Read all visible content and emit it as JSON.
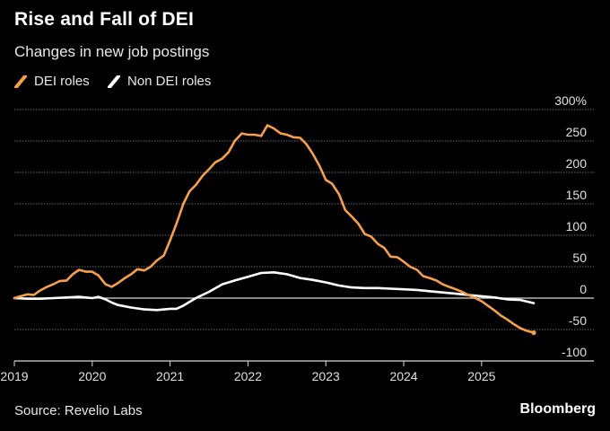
{
  "header": {
    "title": "Rise and Fall of DEI",
    "subtitle": "Changes in new job postings"
  },
  "legend": {
    "items": [
      {
        "label": "DEI roles",
        "color": "#f6a04d",
        "icon": "slash-line-icon"
      },
      {
        "label": "Non DEI roles",
        "color": "#ffffff",
        "icon": "slash-line-icon"
      }
    ]
  },
  "footer": {
    "source": "Source: Revelio Labs",
    "brand": "Bloomberg"
  },
  "chart_data": {
    "type": "line",
    "xlim": [
      2019.0,
      2026.05
    ],
    "ylim": [
      -100,
      300
    ],
    "x_ticks": [
      {
        "value": 2019,
        "label": "2019"
      },
      {
        "value": 2020,
        "label": "2020"
      },
      {
        "value": 2021,
        "label": "2021"
      },
      {
        "value": 2022,
        "label": "2022"
      },
      {
        "value": 2023,
        "label": "2023"
      },
      {
        "value": 2024,
        "label": "2024"
      },
      {
        "value": 2025,
        "label": "2025"
      }
    ],
    "y_ticks": [
      {
        "value": 300,
        "label": "300%"
      },
      {
        "value": 250,
        "label": "250"
      },
      {
        "value": 200,
        "label": "200"
      },
      {
        "value": 150,
        "label": "150"
      },
      {
        "value": 100,
        "label": "100"
      },
      {
        "value": 50,
        "label": "50"
      },
      {
        "value": 0,
        "label": "0"
      },
      {
        "value": -50,
        "label": "-50"
      },
      {
        "value": -100,
        "label": "-100"
      }
    ],
    "grid": true,
    "series": [
      {
        "name": "DEI roles",
        "color": "#f6a04d",
        "x": [
          2019.0,
          2019.08,
          2019.17,
          2019.25,
          2019.33,
          2019.42,
          2019.5,
          2019.58,
          2019.67,
          2019.75,
          2019.83,
          2019.92,
          2020.0,
          2020.08,
          2020.17,
          2020.25,
          2020.33,
          2020.42,
          2020.5,
          2020.58,
          2020.67,
          2020.75,
          2020.83,
          2020.92,
          2021.0,
          2021.08,
          2021.17,
          2021.25,
          2021.33,
          2021.42,
          2021.5,
          2021.58,
          2021.67,
          2021.75,
          2021.83,
          2021.92,
          2022.0,
          2022.08,
          2022.17,
          2022.25,
          2022.33,
          2022.42,
          2022.5,
          2022.58,
          2022.67,
          2022.75,
          2022.83,
          2022.92,
          2023.0,
          2023.08,
          2023.17,
          2023.25,
          2023.33,
          2023.42,
          2023.5,
          2023.58,
          2023.67,
          2023.75,
          2023.83,
          2023.92,
          2024.0,
          2024.08,
          2024.17,
          2024.25,
          2024.33,
          2024.42,
          2024.5,
          2024.58,
          2024.67,
          2024.75,
          2024.83,
          2024.92,
          2025.0,
          2025.08,
          2025.17,
          2025.25,
          2025.33,
          2025.42,
          2025.5,
          2025.58,
          2025.67
        ],
        "values": [
          0,
          3,
          6,
          5,
          12,
          18,
          22,
          27,
          28,
          38,
          45,
          42,
          42,
          36,
          22,
          18,
          24,
          32,
          38,
          46,
          44,
          50,
          60,
          68,
          92,
          118,
          150,
          170,
          180,
          195,
          205,
          216,
          222,
          232,
          250,
          262,
          260,
          260,
          258,
          275,
          270,
          262,
          260,
          256,
          255,
          245,
          230,
          210,
          188,
          182,
          165,
          140,
          130,
          118,
          102,
          98,
          86,
          80,
          66,
          65,
          58,
          50,
          45,
          35,
          32,
          28,
          22,
          18,
          14,
          10,
          5,
          0,
          -5,
          -12,
          -20,
          -28,
          -34,
          -42,
          -48,
          -52,
          -55
        ],
        "end_marker": true
      },
      {
        "name": "Non DEI roles",
        "color": "#ffffff",
        "x": [
          2019.0,
          2019.17,
          2019.33,
          2019.5,
          2019.67,
          2019.83,
          2020.0,
          2020.08,
          2020.17,
          2020.25,
          2020.33,
          2020.5,
          2020.67,
          2020.83,
          2021.0,
          2021.08,
          2021.17,
          2021.33,
          2021.5,
          2021.67,
          2021.83,
          2022.0,
          2022.17,
          2022.33,
          2022.5,
          2022.67,
          2022.83,
          2023.0,
          2023.17,
          2023.33,
          2023.5,
          2023.67,
          2023.83,
          2024.0,
          2024.17,
          2024.33,
          2024.5,
          2024.67,
          2024.83,
          2025.0,
          2025.17,
          2025.33,
          2025.5,
          2025.67
        ],
        "values": [
          0,
          -1,
          -1,
          0,
          1,
          2,
          0,
          2,
          -2,
          -7,
          -11,
          -15,
          -18,
          -19,
          -17,
          -17,
          -12,
          0,
          10,
          22,
          28,
          34,
          40,
          41,
          38,
          32,
          29,
          25,
          20,
          17,
          16,
          16,
          15,
          14,
          13,
          11,
          9,
          7,
          5,
          3,
          1,
          -2,
          -3,
          -8
        ],
        "end_marker": false
      }
    ]
  }
}
